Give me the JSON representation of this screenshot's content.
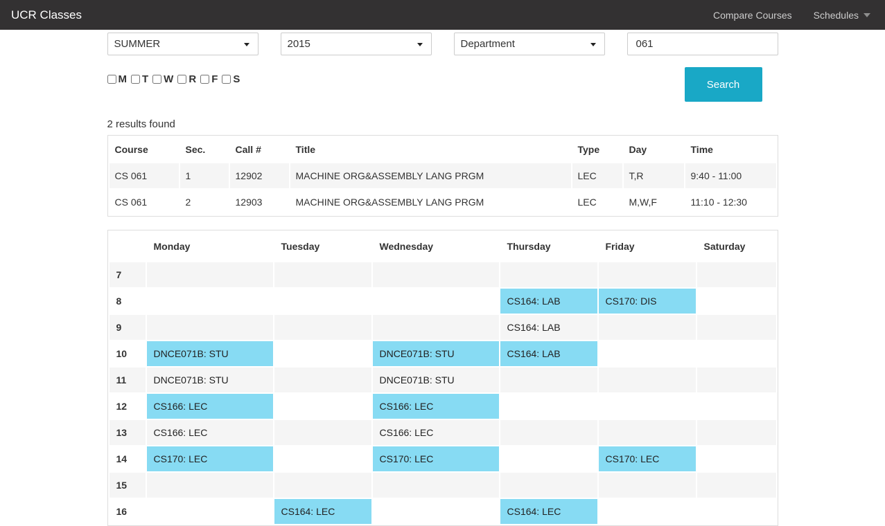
{
  "navbar": {
    "brand": "UCR Classes",
    "links": [
      {
        "label": "Compare Courses"
      },
      {
        "label": "Schedules",
        "has_caret": true
      }
    ]
  },
  "filters": {
    "term": "SUMMER",
    "year": "2015",
    "department": "Department",
    "course_number": "061",
    "days": [
      "M",
      "T",
      "W",
      "R",
      "F",
      "S"
    ],
    "search_label": "Search"
  },
  "results": {
    "summary": "2 results found",
    "columns": [
      "Course",
      "Sec.",
      "Call #",
      "Title",
      "Type",
      "Day",
      "Time"
    ],
    "rows": [
      [
        "CS 061",
        "1",
        "12902",
        "MACHINE ORG&ASSEMBLY LANG PRGM",
        "LEC",
        "T,R",
        "9:40 - 11:00"
      ],
      [
        "CS 061",
        "2",
        "12903",
        "MACHINE ORG&ASSEMBLY LANG PRGM",
        "LEC",
        "M,W,F",
        "11:10 - 12:30"
      ]
    ]
  },
  "schedule": {
    "days": [
      "Monday",
      "Tuesday",
      "Wednesday",
      "Thursday",
      "Friday",
      "Saturday"
    ],
    "hours": [
      "7",
      "8",
      "9",
      "10",
      "11",
      "12",
      "13",
      "14",
      "15",
      "16"
    ],
    "blocks": [
      {
        "hour": "8",
        "day": "Thursday",
        "label": "CS164: LAB"
      },
      {
        "hour": "8",
        "day": "Friday",
        "label": "CS170: DIS"
      },
      {
        "hour": "9",
        "day": "Thursday",
        "label": "CS164: LAB"
      },
      {
        "hour": "10",
        "day": "Monday",
        "label": "DNCE071B: STU"
      },
      {
        "hour": "10",
        "day": "Wednesday",
        "label": "DNCE071B: STU"
      },
      {
        "hour": "10",
        "day": "Thursday",
        "label": "CS164: LAB"
      },
      {
        "hour": "11",
        "day": "Monday",
        "label": "DNCE071B: STU"
      },
      {
        "hour": "11",
        "day": "Wednesday",
        "label": "DNCE071B: STU"
      },
      {
        "hour": "12",
        "day": "Monday",
        "label": "CS166: LEC"
      },
      {
        "hour": "12",
        "day": "Wednesday",
        "label": "CS166: LEC"
      },
      {
        "hour": "13",
        "day": "Monday",
        "label": "CS166: LEC"
      },
      {
        "hour": "13",
        "day": "Wednesday",
        "label": "CS166: LEC"
      },
      {
        "hour": "14",
        "day": "Monday",
        "label": "CS170: LEC"
      },
      {
        "hour": "14",
        "day": "Wednesday",
        "label": "CS170: LEC"
      },
      {
        "hour": "14",
        "day": "Friday",
        "label": "CS170: LEC"
      },
      {
        "hour": "16",
        "day": "Tuesday",
        "label": "CS164: LEC"
      },
      {
        "hour": "16",
        "day": "Thursday",
        "label": "CS164: LEC"
      }
    ]
  },
  "colors": {
    "accent": "#19a8c6",
    "schedule-block": "#87dbf3",
    "navbar-bg": "#333132",
    "stripe": "#f5f5f5"
  }
}
